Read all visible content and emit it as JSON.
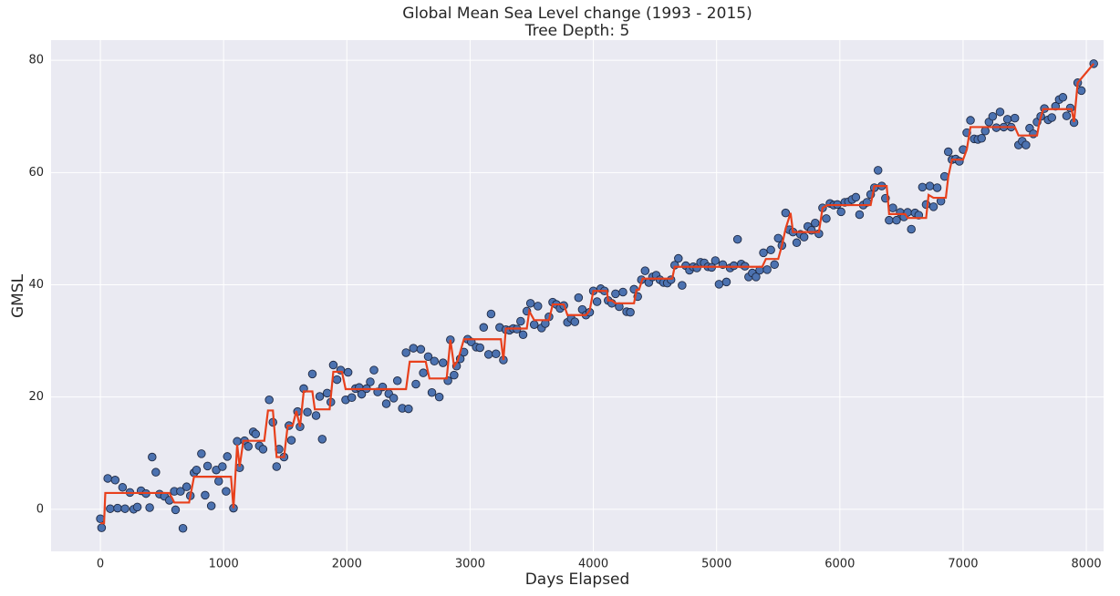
{
  "chart_data": {
    "type": "scatter",
    "title": "Global Mean Sea Level change (1993 - 2015)",
    "subtitle": "Tree Depth: 5",
    "x_label": "Days Elapsed",
    "y_label": "GMSL",
    "xlim": [
      -400,
      8140
    ],
    "ylim": [
      -7.5,
      83.6
    ],
    "xticks": [
      0,
      1000,
      2000,
      3000,
      4000,
      5000,
      6000,
      7000,
      8000
    ],
    "yticks": [
      0,
      20,
      40,
      60,
      80
    ],
    "grid": true,
    "background": "#eaeaf2",
    "series": [
      {
        "kind": "scatter",
        "color": "#4c72b0",
        "edgecolor": "#1f2a44",
        "x": [
          0,
          10,
          60,
          80,
          120,
          140,
          180,
          200,
          240,
          270,
          300,
          330,
          370,
          400,
          420,
          450,
          480,
          520,
          560,
          600,
          610,
          650,
          670,
          700,
          730,
          760,
          780,
          820,
          850,
          870,
          900,
          940,
          960,
          990,
          1020,
          1030,
          1080,
          1110,
          1130,
          1170,
          1200,
          1240,
          1260,
          1290,
          1320,
          1370,
          1400,
          1430,
          1450,
          1490,
          1530,
          1550,
          1600,
          1620,
          1650,
          1680,
          1720,
          1750,
          1780,
          1800,
          1840,
          1870,
          1890,
          1920,
          1950,
          1990,
          2010,
          2040,
          2070,
          2100,
          2120,
          2160,
          2190,
          2220,
          2250,
          2290,
          2320,
          2340,
          2380,
          2410,
          2450,
          2480,
          2500,
          2540,
          2560,
          2600,
          2620,
          2660,
          2690,
          2710,
          2750,
          2780,
          2820,
          2840,
          2870,
          2890,
          2920,
          2950,
          2980,
          3010,
          3050,
          3080,
          3110,
          3150,
          3170,
          3210,
          3240,
          3270,
          3290,
          3320,
          3350,
          3380,
          3410,
          3430,
          3460,
          3490,
          3520,
          3550,
          3580,
          3610,
          3640,
          3670,
          3700,
          3730,
          3760,
          3790,
          3820,
          3850,
          3880,
          3910,
          3940,
          3970,
          4000,
          4030,
          4060,
          4090,
          4120,
          4150,
          4180,
          4210,
          4240,
          4270,
          4300,
          4330,
          4360,
          4390,
          4420,
          4450,
          4480,
          4510,
          4540,
          4570,
          4600,
          4630,
          4660,
          4690,
          4720,
          4750,
          4780,
          4810,
          4840,
          4870,
          4900,
          4930,
          4960,
          4990,
          5020,
          5050,
          5080,
          5110,
          5140,
          5170,
          5200,
          5230,
          5260,
          5290,
          5320,
          5350,
          5380,
          5410,
          5440,
          5470,
          5500,
          5530,
          5560,
          5590,
          5620,
          5650,
          5680,
          5710,
          5740,
          5770,
          5800,
          5830,
          5860,
          5890,
          5920,
          5950,
          5980,
          6010,
          6040,
          6070,
          6100,
          6130,
          6160,
          6190,
          6220,
          6250,
          6280,
          6310,
          6340,
          6370,
          6400,
          6430,
          6460,
          6490,
          6520,
          6550,
          6580,
          6610,
          6640,
          6670,
          6700,
          6730,
          6760,
          6790,
          6820,
          6850,
          6880,
          6910,
          6940,
          6970,
          7000,
          7030,
          7060,
          7090,
          7120,
          7150,
          7180,
          7210,
          7240,
          7270,
          7300,
          7330,
          7360,
          7390,
          7420,
          7450,
          7480,
          7510,
          7540,
          7570,
          7600,
          7630,
          7660,
          7690,
          7720,
          7750,
          7780,
          7810,
          7840,
          7870,
          7900,
          7930,
          7960,
          8060
        ],
        "values": [
          -1.7,
          -3.3,
          5.5,
          0.1,
          5.2,
          0.2,
          3.9,
          0.1,
          3.0,
          0.0,
          0.4,
          3.3,
          2.8,
          0.3,
          9.3,
          6.6,
          2.7,
          2.3,
          1.6,
          3.2,
          -0.1,
          3.2,
          -3.4,
          4.0,
          2.4,
          6.5,
          7.0,
          9.9,
          2.5,
          7.7,
          0.6,
          7.0,
          5.0,
          7.6,
          3.2,
          9.4,
          0.2,
          12.1,
          7.4,
          12.2,
          11.2,
          13.8,
          13.4,
          11.3,
          10.7,
          19.5,
          15.5,
          7.6,
          10.7,
          9.3,
          14.9,
          12.3,
          17.4,
          14.7,
          21.5,
          17.3,
          24.1,
          16.7,
          20.1,
          12.5,
          20.7,
          19.1,
          25.7,
          23.1,
          24.8,
          19.5,
          24.4,
          19.9,
          21.5,
          21.7,
          20.5,
          21.5,
          22.7,
          24.8,
          20.9,
          21.8,
          18.8,
          20.6,
          19.8,
          22.9,
          18.0,
          27.9,
          17.9,
          28.7,
          22.3,
          28.5,
          24.3,
          27.2,
          20.8,
          26.4,
          20.0,
          26.1,
          22.9,
          30.2,
          23.9,
          25.5,
          26.8,
          28.0,
          30.3,
          29.8,
          28.9,
          28.8,
          32.4,
          27.6,
          34.8,
          27.7,
          32.4,
          26.6,
          32.0,
          31.9,
          32.2,
          32.1,
          33.5,
          31.1,
          35.3,
          36.7,
          32.9,
          36.2,
          32.3,
          33.1,
          34.3,
          36.9,
          36.5,
          35.8,
          36.3,
          33.3,
          34.0,
          33.4,
          37.7,
          35.6,
          34.6,
          35.1,
          38.9,
          37.0,
          39.3,
          38.9,
          37.2,
          36.7,
          38.4,
          36.1,
          38.7,
          35.2,
          35.1,
          39.2,
          37.9,
          40.9,
          42.5,
          40.4,
          41.4,
          41.7,
          40.9,
          40.4,
          40.3,
          40.9,
          43.5,
          44.7,
          39.9,
          43.4,
          42.6,
          43.2,
          43.0,
          44.0,
          43.9,
          43.2,
          43.1,
          44.3,
          40.1,
          43.6,
          40.5,
          43.0,
          43.4,
          48.1,
          43.7,
          43.3,
          41.4,
          42.1,
          41.4,
          42.6,
          45.7,
          42.7,
          46.2,
          43.6,
          48.3,
          47.0,
          52.8,
          49.8,
          49.4,
          47.5,
          49.0,
          48.5,
          50.4,
          49.7,
          51.0,
          49.1,
          53.7,
          51.8,
          54.5,
          54.2,
          54.3,
          53.0,
          54.7,
          54.8,
          55.2,
          55.6,
          52.5,
          54.2,
          54.7,
          56.1,
          57.3,
          60.4,
          57.6,
          55.4,
          51.5,
          53.7,
          51.5,
          52.9,
          52.1,
          52.9,
          49.9,
          52.8,
          52.4,
          57.4,
          54.3,
          57.6,
          53.9,
          57.3,
          54.9,
          59.3,
          63.7,
          62.3,
          62.4,
          62.0,
          64.1,
          67.1,
          69.3,
          66.0,
          65.9,
          66.1,
          67.4,
          69.0,
          70.0,
          68.0,
          70.8,
          68.1,
          69.5,
          68.1,
          69.7,
          64.9,
          65.6,
          64.9,
          67.9,
          66.9,
          69.0,
          70.0,
          71.4,
          69.4,
          69.8,
          71.8,
          73.0,
          73.4,
          70.1,
          71.5,
          68.9,
          76.0,
          74.6,
          79.4
        ]
      },
      {
        "kind": "line",
        "color": "#e8401c",
        "x": [
          0,
          30,
          40,
          560,
          600,
          720,
          760,
          1060,
          1080,
          1110,
          1130,
          1160,
          1330,
          1360,
          1400,
          1430,
          1490,
          1520,
          1560,
          1590,
          1620,
          1650,
          1720,
          1740,
          1860,
          1890,
          1960,
          1990,
          2480,
          2510,
          2640,
          2670,
          2810,
          2840,
          2870,
          2900,
          2950,
          3250,
          3270,
          3290,
          3460,
          3480,
          3520,
          3640,
          3670,
          3760,
          3790,
          3940,
          3970,
          4000,
          4110,
          4120,
          4150,
          4180,
          4330,
          4350,
          4370,
          4400,
          4640,
          4660,
          5370,
          5400,
          5500,
          5530,
          5560,
          5600,
          5620,
          5830,
          5860,
          5900,
          6250,
          6280,
          6380,
          6400,
          6530,
          6550,
          6700,
          6720,
          6760,
          6860,
          6880,
          6910,
          7000,
          7030,
          7060,
          7420,
          7450,
          7600,
          7620,
          7650,
          7880,
          7900,
          7930,
          8060
        ],
        "values": [
          -2.5,
          -2.5,
          2.9,
          2.9,
          1.2,
          1.2,
          5.8,
          5.8,
          0.2,
          11.5,
          7.6,
          12.2,
          12.2,
          17.6,
          17.6,
          9.3,
          9.3,
          14.9,
          14.9,
          17.5,
          14.7,
          21.0,
          21.0,
          17.8,
          17.8,
          24.5,
          24.5,
          21.4,
          21.4,
          26.3,
          26.3,
          23.3,
          23.3,
          30.2,
          25.5,
          26.5,
          30.3,
          30.3,
          26.6,
          32.2,
          32.2,
          35.3,
          33.7,
          33.7,
          36.5,
          36.5,
          34.6,
          34.6,
          35.4,
          38.9,
          38.9,
          37.2,
          37.2,
          36.7,
          36.7,
          39.1,
          39.1,
          41.1,
          41.1,
          43.2,
          43.2,
          44.6,
          44.6,
          47.0,
          50.0,
          52.8,
          49.4,
          49.4,
          53.7,
          54.2,
          54.2,
          57.6,
          57.6,
          52.6,
          52.6,
          51.9,
          51.9,
          56.0,
          55.5,
          55.5,
          59.3,
          62.3,
          62.3,
          64.1,
          68.1,
          68.1,
          66.6,
          66.6,
          69.0,
          71.3,
          71.3,
          69.0,
          76.0,
          79.4
        ]
      }
    ]
  }
}
